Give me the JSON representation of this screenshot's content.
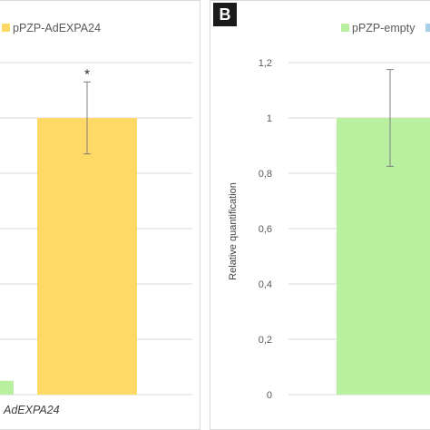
{
  "chart_data": [
    {
      "type": "bar",
      "panel_label": "",
      "legend": [
        {
          "name": "pPZP-AdEXPA24",
          "color": "#ffd966"
        }
      ],
      "categories": [
        "pPZP-AdEXPA24"
      ],
      "visible_category_label": "AdEXPA24",
      "series": [
        {
          "name": "pPZP-empty",
          "values": [
            0.05
          ],
          "color": "#b8f0a0"
        },
        {
          "name": "pPZP-AdEXPA24",
          "values": [
            1.0
          ],
          "error": [
            0.13
          ],
          "significance": "*",
          "color": "#ffd966"
        }
      ],
      "ylim": [
        0,
        1.2
      ],
      "grid": true
    },
    {
      "type": "bar",
      "panel_label": "B",
      "legend": [
        {
          "name": "pPZP-empty",
          "color": "#b8f0a0"
        },
        {
          "name": "",
          "color": "#a9cfe8"
        }
      ],
      "ylabel": "Relative quantification",
      "yticks": [
        "0",
        "0,2",
        "0,4",
        "0,6",
        "0,8",
        "1",
        "1,2"
      ],
      "ylim": [
        0,
        1.2
      ],
      "series": [
        {
          "name": "pPZP-empty",
          "values": [
            1.0
          ],
          "error": [
            0.175
          ],
          "color": "#b8f0a0"
        }
      ],
      "grid": true
    }
  ]
}
